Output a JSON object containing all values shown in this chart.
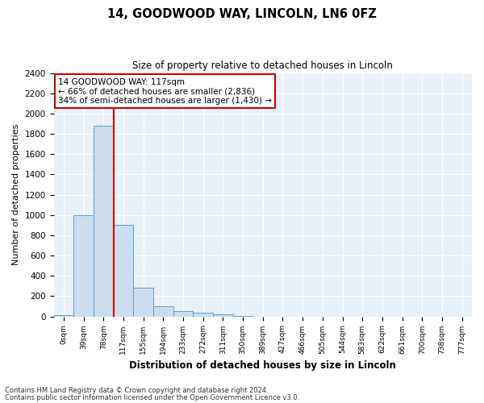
{
  "title1": "14, GOODWOOD WAY, LINCOLN, LN6 0FZ",
  "title2": "Size of property relative to detached houses in Lincoln",
  "xlabel": "Distribution of detached houses by size in Lincoln",
  "ylabel": "Number of detached properties",
  "bin_labels": [
    "0sqm",
    "39sqm",
    "78sqm",
    "117sqm",
    "155sqm",
    "194sqm",
    "233sqm",
    "272sqm",
    "311sqm",
    "350sqm",
    "389sqm",
    "427sqm",
    "466sqm",
    "505sqm",
    "544sqm",
    "583sqm",
    "622sqm",
    "661sqm",
    "700sqm",
    "738sqm",
    "777sqm"
  ],
  "bar_heights": [
    15,
    1000,
    1880,
    900,
    280,
    100,
    50,
    38,
    20,
    5,
    0,
    0,
    0,
    0,
    0,
    0,
    0,
    0,
    0,
    0,
    0
  ],
  "bar_color": "#ccddf0",
  "bar_edge_color": "#5b9bd5",
  "highlight_bar_index": 3,
  "vline_color": "#cc0000",
  "ylim": [
    0,
    2400
  ],
  "yticks": [
    0,
    200,
    400,
    600,
    800,
    1000,
    1200,
    1400,
    1600,
    1800,
    2000,
    2200,
    2400
  ],
  "annotation_text": "14 GOODWOOD WAY: 117sqm\n← 66% of detached houses are smaller (2,836)\n34% of semi-detached houses are larger (1,430) →",
  "annotation_box_facecolor": "#ffffff",
  "annotation_box_edgecolor": "#cc0000",
  "footer1": "Contains HM Land Registry data © Crown copyright and database right 2024.",
  "footer2": "Contains public sector information licensed under the Open Government Licence v3.0.",
  "bg_color": "#e8f0f8",
  "grid_color": "#ffffff"
}
